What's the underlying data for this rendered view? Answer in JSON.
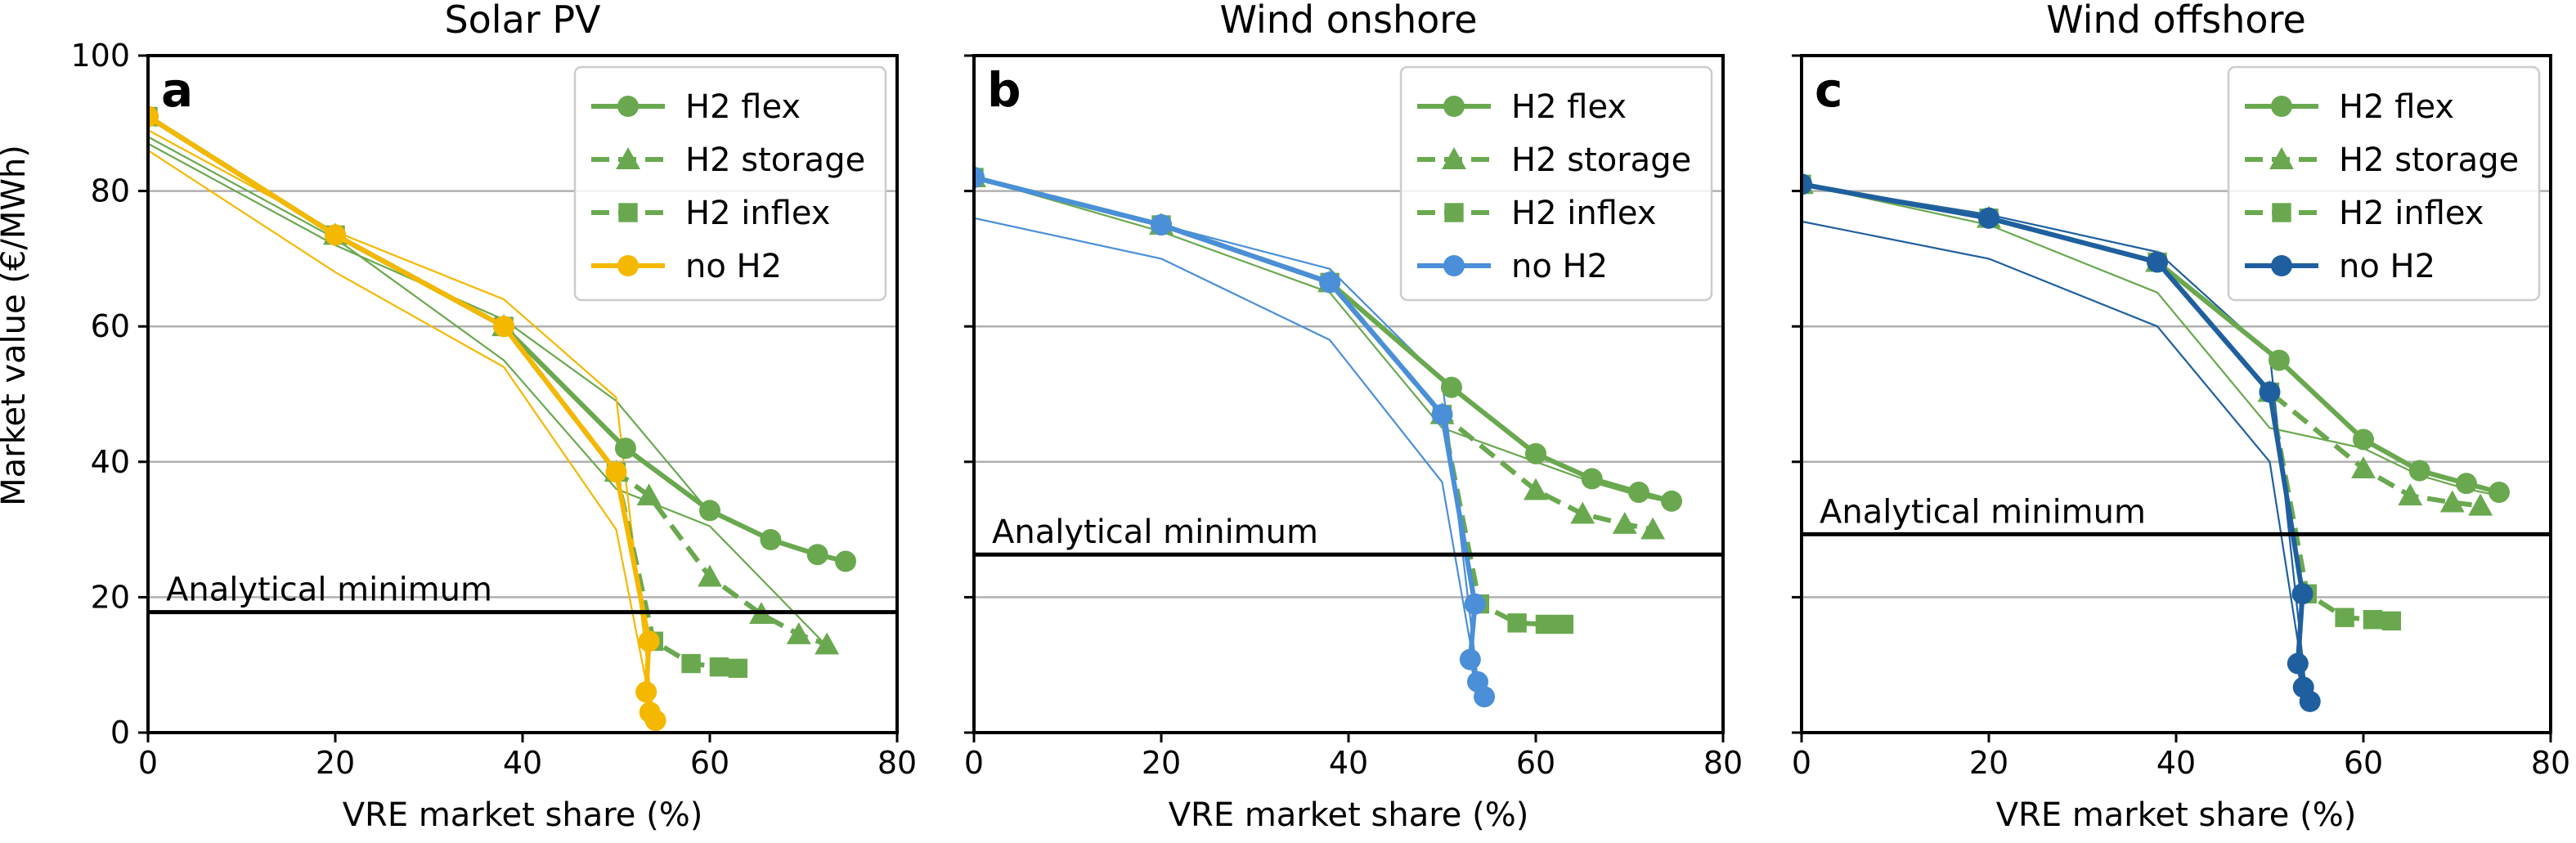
{
  "figure": {
    "ylabel": "Market value (€/MWh)",
    "colors": {
      "h2": "#6aa84f",
      "grid": "#b0b0b0",
      "frame": "#000000"
    }
  },
  "chart_data": [
    {
      "type": "line",
      "panel_letter": "a",
      "title": "Solar PV",
      "xlabel": "VRE market share (%)",
      "ylabel": "Market value (€/MWh)",
      "xlim": [
        0,
        80
      ],
      "ylim": [
        0,
        100
      ],
      "xticks": [
        0,
        20,
        40,
        60,
        80
      ],
      "yticks": [
        0,
        20,
        40,
        60,
        80,
        100
      ],
      "grid": "horizontal",
      "legend_position": "top-right",
      "analytical_minimum": {
        "label": "Analytical minimum",
        "value": 17.8
      },
      "series": [
        {
          "name": "H2 flex",
          "color": "#6aa84f",
          "style": "solid",
          "marker": "circle",
          "x": [
            0,
            20,
            38,
            51,
            60,
            66.5,
            71.5,
            74.5
          ],
          "y": [
            91,
            73.5,
            60,
            42,
            32.8,
            28.5,
            26.3,
            25.3
          ]
        },
        {
          "name": "H2 storage",
          "color": "#6aa84f",
          "style": "dashed",
          "marker": "triangle",
          "x": [
            0,
            20,
            38,
            50,
            53.5,
            60,
            65.5,
            69.5,
            72.5
          ],
          "y": [
            91,
            73.5,
            60,
            38.5,
            35,
            23,
            17.5,
            14.5,
            13
          ]
        },
        {
          "name": "H2 inflex",
          "color": "#6aa84f",
          "style": "dashed",
          "marker": "square",
          "x": [
            0,
            20,
            38,
            50,
            54,
            58,
            61,
            63
          ],
          "y": [
            91,
            73.5,
            60,
            38.5,
            13.5,
            10.2,
            9.7,
            9.5
          ]
        },
        {
          "name": "no H2",
          "color": "#f5b800",
          "style": "solid",
          "marker": "circle",
          "x": [
            0,
            20,
            38,
            50,
            53.5,
            53.2,
            53.6,
            54.2
          ],
          "y": [
            91,
            73.5,
            60,
            38.5,
            13.5,
            6,
            3,
            1.8
          ]
        }
      ],
      "thin_lines": [
        {
          "color": "#6aa84f",
          "x": [
            0,
            20,
            38,
            50,
            60,
            66,
            70,
            74.5
          ],
          "y": [
            87,
            72,
            61,
            49,
            32.5,
            28.8,
            26.8,
            25.5
          ]
        },
        {
          "color": "#6aa84f",
          "x": [
            0,
            20,
            38,
            50,
            60,
            66,
            72
          ],
          "y": [
            88,
            73,
            55,
            36,
            30.5,
            22,
            13.5
          ]
        },
        {
          "color": "#f5b800",
          "x": [
            0,
            20,
            38,
            50,
            54
          ],
          "y": [
            86,
            68,
            54,
            30,
            1.8
          ]
        },
        {
          "color": "#f5b800",
          "x": [
            0,
            20,
            38,
            50,
            54
          ],
          "y": [
            89,
            74,
            64,
            49.5,
            2
          ]
        }
      ]
    },
    {
      "type": "line",
      "panel_letter": "b",
      "title": "Wind onshore",
      "xlabel": "VRE market share (%)",
      "xlim": [
        0,
        80
      ],
      "ylim": [
        0,
        100
      ],
      "xticks": [
        0,
        20,
        40,
        60,
        80
      ],
      "yticks": [
        0,
        20,
        40,
        60,
        80,
        100
      ],
      "grid": "horizontal",
      "legend_position": "top-right",
      "analytical_minimum": {
        "label": "Analytical minimum",
        "value": 26.3
      },
      "series": [
        {
          "name": "H2 flex",
          "color": "#6aa84f",
          "style": "solid",
          "marker": "circle",
          "x": [
            0,
            20,
            38,
            51,
            60,
            66,
            71,
            74.5
          ],
          "y": [
            82,
            75,
            66.5,
            51,
            41.2,
            37.5,
            35.5,
            34.2
          ]
        },
        {
          "name": "H2 storage",
          "color": "#6aa84f",
          "style": "dashed",
          "marker": "triangle",
          "x": [
            0,
            20,
            38,
            50,
            60,
            65,
            69.5,
            72.5
          ],
          "y": [
            82,
            75,
            66.5,
            47,
            35.8,
            32.3,
            30.8,
            30
          ]
        },
        {
          "name": "H2 inflex",
          "color": "#6aa84f",
          "style": "dashed",
          "marker": "square",
          "x": [
            0,
            20,
            38,
            50,
            54,
            58,
            61,
            63
          ],
          "y": [
            82,
            75,
            66.5,
            47,
            19,
            16.2,
            16,
            16
          ]
        },
        {
          "name": "no H2",
          "color": "#4a8fd8",
          "style": "solid",
          "marker": "circle",
          "x": [
            0,
            20,
            38,
            50,
            53.5,
            53,
            53.8,
            54.5
          ],
          "y": [
            82,
            75,
            66.5,
            47,
            19,
            10.8,
            7.5,
            5.3
          ]
        }
      ],
      "thin_lines": [
        {
          "color": "#6aa84f",
          "x": [
            0,
            20,
            38,
            50,
            60,
            66,
            71,
            74.5
          ],
          "y": [
            82,
            74,
            65,
            45,
            40,
            37,
            35,
            34
          ]
        },
        {
          "color": "#4a8fd8",
          "x": [
            0,
            20,
            38,
            50,
            54
          ],
          "y": [
            76,
            70,
            58,
            37,
            5.3
          ]
        },
        {
          "color": "#4a8fd8",
          "x": [
            0,
            20,
            38,
            50,
            54
          ],
          "y": [
            82,
            75,
            68.5,
            52,
            5.3
          ]
        }
      ]
    },
    {
      "type": "line",
      "panel_letter": "c",
      "title": "Wind offshore",
      "xlabel": "VRE market share (%)",
      "xlim": [
        0,
        80
      ],
      "ylim": [
        0,
        100
      ],
      "xticks": [
        0,
        20,
        40,
        60,
        80
      ],
      "yticks": [
        0,
        20,
        40,
        60,
        80,
        100
      ],
      "grid": "horizontal",
      "legend_position": "top-right",
      "analytical_minimum": {
        "label": "Analytical minimum",
        "value": 29.3
      },
      "series": [
        {
          "name": "H2 flex",
          "color": "#6aa84f",
          "style": "solid",
          "marker": "circle",
          "x": [
            0,
            20,
            38,
            51,
            60,
            66,
            71,
            74.5
          ],
          "y": [
            81,
            76,
            69.5,
            55,
            43.3,
            38.7,
            36.8,
            35.5
          ]
        },
        {
          "name": "H2 storage",
          "color": "#6aa84f",
          "style": "dashed",
          "marker": "triangle",
          "x": [
            0,
            20,
            38,
            50,
            60,
            65,
            69.5,
            72.5
          ],
          "y": [
            81,
            76,
            69.5,
            50.3,
            39,
            35,
            34,
            33.5
          ]
        },
        {
          "name": "H2 inflex",
          "color": "#6aa84f",
          "style": "dashed",
          "marker": "square",
          "x": [
            0,
            20,
            38,
            50,
            54,
            58,
            61,
            63
          ],
          "y": [
            81,
            76,
            69.5,
            50.3,
            20.5,
            17,
            16.7,
            16.5
          ]
        },
        {
          "name": "no H2",
          "color": "#1f5f9f",
          "style": "solid",
          "marker": "circle",
          "x": [
            0,
            20,
            38,
            50,
            53.5,
            53,
            53.6,
            54.3
          ],
          "y": [
            81,
            76,
            69.5,
            50.3,
            20.5,
            10.2,
            6.7,
            4.6
          ]
        }
      ],
      "thin_lines": [
        {
          "color": "#6aa84f",
          "x": [
            0,
            20,
            38,
            50,
            60,
            66,
            71,
            74.5
          ],
          "y": [
            81,
            75,
            65,
            45,
            42,
            38,
            36,
            35
          ]
        },
        {
          "color": "#1f5f9f",
          "x": [
            0,
            20,
            38,
            50,
            54
          ],
          "y": [
            75.5,
            70,
            60,
            40,
            4.6
          ]
        },
        {
          "color": "#1f5f9f",
          "x": [
            0,
            20,
            38,
            50,
            54
          ],
          "y": [
            81,
            76.5,
            71,
            56,
            4.6
          ]
        }
      ]
    }
  ]
}
